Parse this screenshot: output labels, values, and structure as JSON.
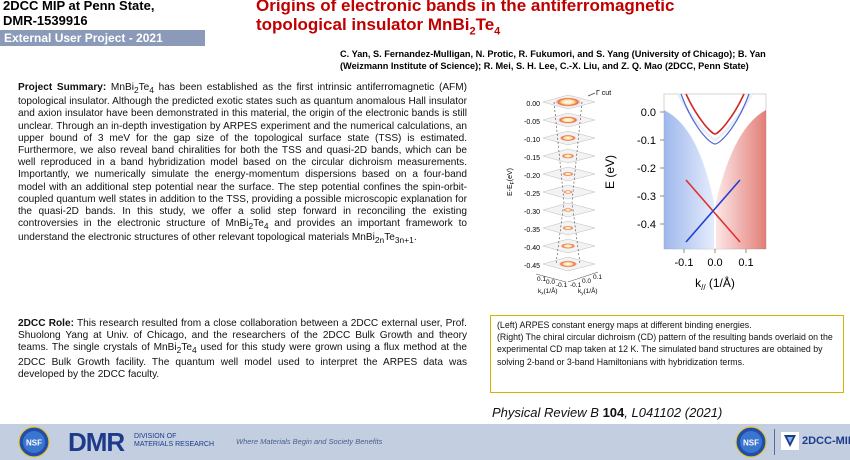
{
  "header": {
    "line1": "2DCC MIP at Penn State,",
    "line2": "DMR-1539916",
    "bar": "External User Project - 2021",
    "title_a": "Origins of electronic bands in the antiferromagnetic",
    "title_b": "topological insulator MnBi",
    "title_sub1": "2",
    "title_c": "Te",
    "title_sub2": "4"
  },
  "authors": {
    "line1": "C. Yan, S. Fernandez-Mulligan, N. Protic, R. Fukumori, and S. Yang (University of Chicago); B. Yan",
    "line2": "(Weizmann Institute of Science); R. Mei, S. H. Lee, C.-X. Liu, and Z. Q. Mao (2DCC, Penn State)"
  },
  "summary": {
    "label": "Project Summary:",
    "part1": " MnBi",
    "s1": "2",
    "part2": "Te",
    "s2": "4",
    "part3": " has been established as the first intrinsic antiferromagnetic (AFM) topological insulator. Although the predicted exotic states such as quantum anomalous Hall insulator and axion insulator have been demonstrated in this material, the origin of the electronic bands is still unclear. Through an in-depth investigation by ARPES experiment and the numerical calculations, an upper bound of 3 meV for the gap size of the topological surface state (TSS) is estimated. Furthermore, we also reveal  band chiralities for both the TSS and quasi-2D bands, which can be well reproduced in a band hybridization model based on the circular dichroism measurements. Importantly, we numerically simulate  the energy-momentum dispersions based on a four-band model with an additional step potential near the surface. The step potential confines the spin-orbit-coupled quantum well states in addition to the TSS, providing a possible microscopic explanation for the quasi-2D bands. In this study, we offer a solid step forward in reconciling the existing controversies in the electronic structure of MnBi",
    "s3": "2",
    "part4": "Te",
    "s4": "4",
    "part5": " and provides an important framework to understand the electronic structures of other relevant  topological materials MnBi",
    "s5": "2n",
    "part6": "Te",
    "s6": "3n+1",
    "part7": "."
  },
  "role": {
    "label": "2DCC Role:",
    "part1": " This research resulted from a close collaboration between a 2DCC external user, Prof. Shuolong Yang at Univ. of Chicago, and the researchers of the 2DCC Bulk Growth and theory teams. The single crystals of MnBi",
    "s1": "2",
    "part2": "Te",
    "s2": "4",
    "part3": " used for this study were grown using a flux method at the 2DCC Bulk Growth facility. The quantum well model used to interpret the ARPES data was developed by the 2DCC faculty."
  },
  "figure_left": {
    "energies": [
      "0.00",
      "-0.05",
      "-0.10",
      "-0.15",
      "-0.20",
      "-0.25",
      "-0.30",
      "-0.35",
      "-0.40",
      "-0.45"
    ],
    "ylabel": "E-E",
    "ylabel_sub": "F",
    "ylabel_unit": "(eV)",
    "cut_label": "Γ cut",
    "kx_ticks": [
      "0.1",
      "0.0",
      "-0.1"
    ],
    "ky_ticks": [
      "-0.1",
      "0.0",
      "0.1"
    ],
    "kx_label": "k",
    "kx_sub": "x",
    "kx_unit": "(1/Å)",
    "ky_label": "k",
    "ky_sub": "y",
    "ky_unit": "(1/Å)"
  },
  "figure_right": {
    "yticks": [
      "0.0",
      "-0.1",
      "-0.2",
      "-0.3",
      "-0.4"
    ],
    "xticks": [
      "-0.1",
      "0.0",
      "0.1"
    ],
    "ylabel": "E (eV)",
    "xlabel": "k",
    "xlabel_sub": "//",
    "xlabel_unit": " (1/Å)"
  },
  "caption": {
    "line1": "(Left)  ARPES constant energy  maps at different binding energies.",
    "line2": "(Right) The chiral circular dichroism (CD) pattern of the resulting bands overlaid on the experimental CD map taken at 12 K. The simulated band structures are obtained by solving 2-band or 3-band Hamiltonians with hybridization terms."
  },
  "citation": {
    "journal": "Physical Review B",
    "volume": "104",
    "rest": ", L041102 (2021)"
  },
  "footer": {
    "nsf": "NSF",
    "dmr": "DMR",
    "dmr_sub1": "DIVISION OF",
    "dmr_sub2": "MATERIALS RESEARCH",
    "tagline": "Where Materials Begin and Society Benefits",
    "mip": "2DCC-MIP"
  },
  "colors": {
    "title_red": "#c00000",
    "header_bar": "#8a9ab8",
    "footer_bg": "#c3cfe0",
    "caption_border": "#d8b400",
    "band_red": "#e03030",
    "band_blue": "#2040d0"
  }
}
